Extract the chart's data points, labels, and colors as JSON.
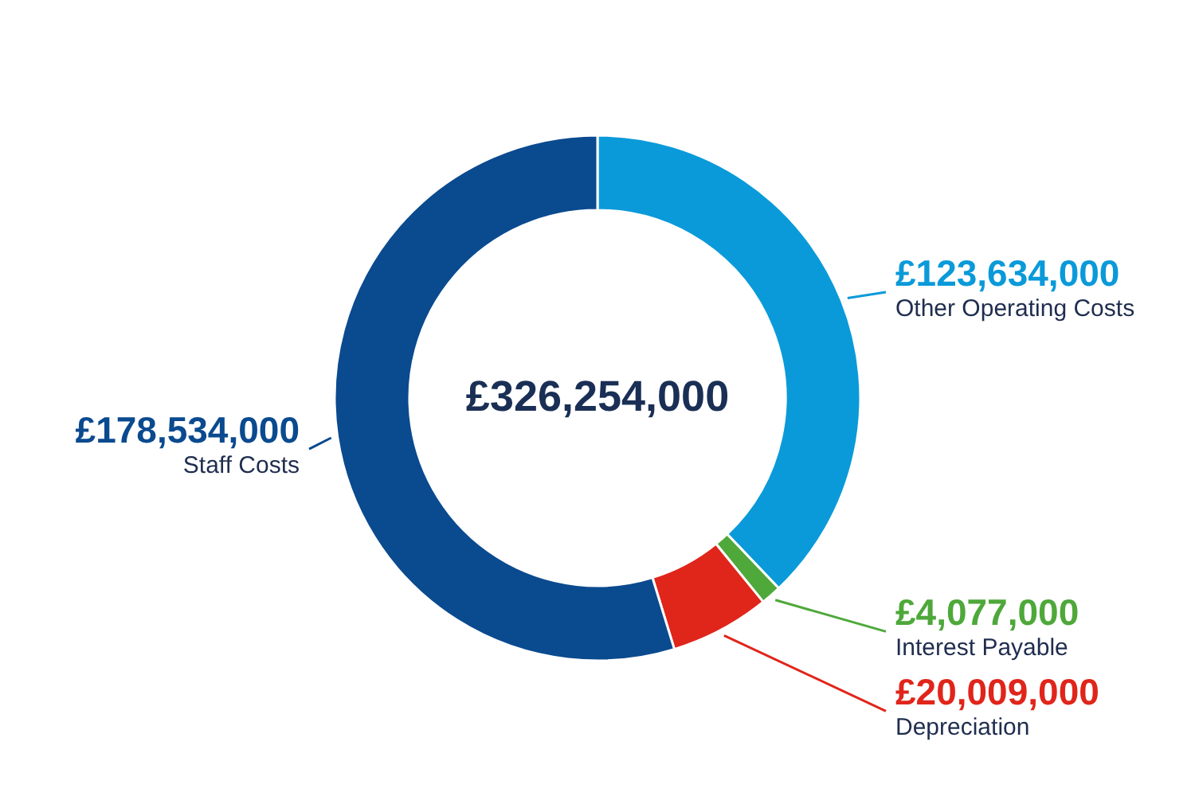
{
  "chart_data": {
    "type": "donut",
    "categories": [
      "Other Operating Costs",
      "Interest Payable",
      "Depreciation",
      "Staff Costs"
    ],
    "values": [
      123634000,
      4077000,
      20009000,
      178534000
    ],
    "colors": [
      "#0a9ad9",
      "#4ea83a",
      "#e0251b",
      "#0a4a8f"
    ],
    "value_labels": [
      "£123,634,000",
      "£4,077,000",
      "£20,009,000",
      "£178,534,000"
    ],
    "annotations": [
      "£326,254,000"
    ]
  }
}
